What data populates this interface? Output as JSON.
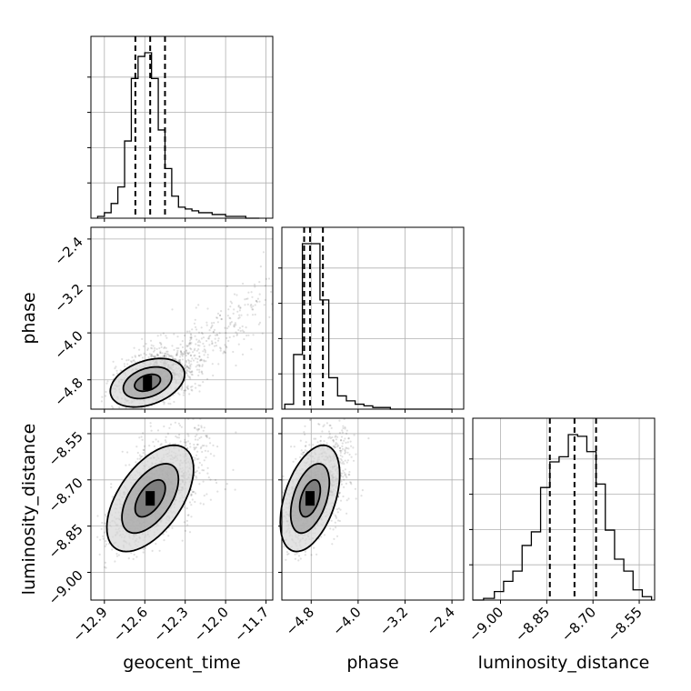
{
  "chart_data": {
    "type": "corner",
    "parameters": [
      "geocent_time",
      "phase",
      "luminosity_distance"
    ],
    "axis_labels": {
      "geocent_time": "geocent_time",
      "phase": "phase",
      "luminosity_distance": "luminosity_distance"
    },
    "ranges": {
      "geocent_time": [
        -13.0,
        -11.65
      ],
      "phase": [
        -5.3,
        -2.2
      ],
      "luminosity_distance": [
        -9.09,
        -8.5
      ]
    },
    "ticks": {
      "geocent_time": [
        -12.9,
        -12.6,
        -12.3,
        -12.0,
        -11.7
      ],
      "phase": [
        -4.8,
        -4.0,
        -3.2,
        -2.4
      ],
      "luminosity_distance": [
        -9.0,
        -8.85,
        -8.7,
        -8.55
      ]
    },
    "tick_labels": {
      "geocent_time": [
        "−12.9",
        "−12.6",
        "−12.3",
        "−12.0",
        "−11.7"
      ],
      "phase": [
        "−4.8",
        "−4.0",
        "−3.2",
        "−2.4"
      ],
      "luminosity_distance": [
        "−9.00",
        "−8.85",
        "−8.70",
        "−8.55"
      ]
    },
    "quantiles": {
      "geocent_time": [
        -12.67,
        -12.56,
        -12.45
      ],
      "phase": [
        -4.92,
        -4.82,
        -4.6
      ],
      "luminosity_distance": [
        -8.84,
        -8.76,
        -8.69
      ]
    },
    "histograms": {
      "geocent_time": {
        "edges": [
          -12.95,
          -12.9,
          -12.85,
          -12.8,
          -12.75,
          -12.7,
          -12.65,
          -12.6,
          -12.55,
          -12.5,
          -12.45,
          -12.4,
          -12.35,
          -12.3,
          -12.25,
          -12.2,
          -12.15,
          -12.1,
          -12.05,
          -12.0,
          -11.95,
          -11.9,
          -11.85,
          -11.8,
          -11.75
        ],
        "counts": [
          1,
          3,
          8,
          17,
          42,
          76,
          88,
          90,
          76,
          48,
          27,
          12,
          6,
          5,
          4,
          3,
          3,
          2,
          2,
          1,
          1,
          1,
          0,
          0
        ]
      },
      "phase": {
        "edges": [
          -5.25,
          -5.1,
          -4.95,
          -4.8,
          -4.65,
          -4.5,
          -4.35,
          -4.2,
          -4.05,
          -3.9,
          -3.75,
          -3.6,
          -3.45,
          -3.3,
          -3.15,
          -3.0,
          -2.85,
          -2.7,
          -2.55,
          -2.4
        ],
        "counts": [
          3,
          33,
          100,
          100,
          66,
          19,
          8,
          5,
          3,
          2,
          1,
          1,
          0,
          0,
          0,
          0,
          0,
          0,
          0
        ]
      },
      "luminosity_distance": {
        "edges": [
          -9.09,
          -9.055,
          -9.02,
          -8.99,
          -8.96,
          -8.93,
          -8.9,
          -8.87,
          -8.84,
          -8.81,
          -8.78,
          -8.75,
          -8.72,
          -8.69,
          -8.66,
          -8.63,
          -8.6,
          -8.57,
          -8.54,
          -8.51
        ],
        "counts": [
          0,
          1,
          5,
          11,
          17,
          32,
          40,
          66,
          81,
          84,
          97,
          96,
          87,
          68,
          41,
          24,
          17,
          6,
          2
        ]
      }
    },
    "joint": {
      "phase_vs_geocent_time": {
        "center": [
          -12.58,
          -4.85
        ],
        "sigma": [
          0.12,
          0.18
        ],
        "tilt": 0.35,
        "tail_direction": [
          1.0,
          1.65
        ],
        "contour_radii": [
          0.8,
          1.5,
          2.3
        ]
      },
      "luminosity_distance_vs_geocent_time": {
        "center": [
          -12.56,
          -8.76
        ],
        "sigma": [
          0.14,
          0.075
        ],
        "tilt": 0.55,
        "contour_radii": [
          0.8,
          1.5,
          2.3
        ]
      },
      "luminosity_distance_vs_phase": {
        "center": [
          -4.82,
          -8.76
        ],
        "sigma": [
          0.22,
          0.075
        ],
        "tilt": 0.45,
        "contour_radii": [
          0.8,
          1.5,
          2.3
        ]
      }
    },
    "grid": true
  }
}
